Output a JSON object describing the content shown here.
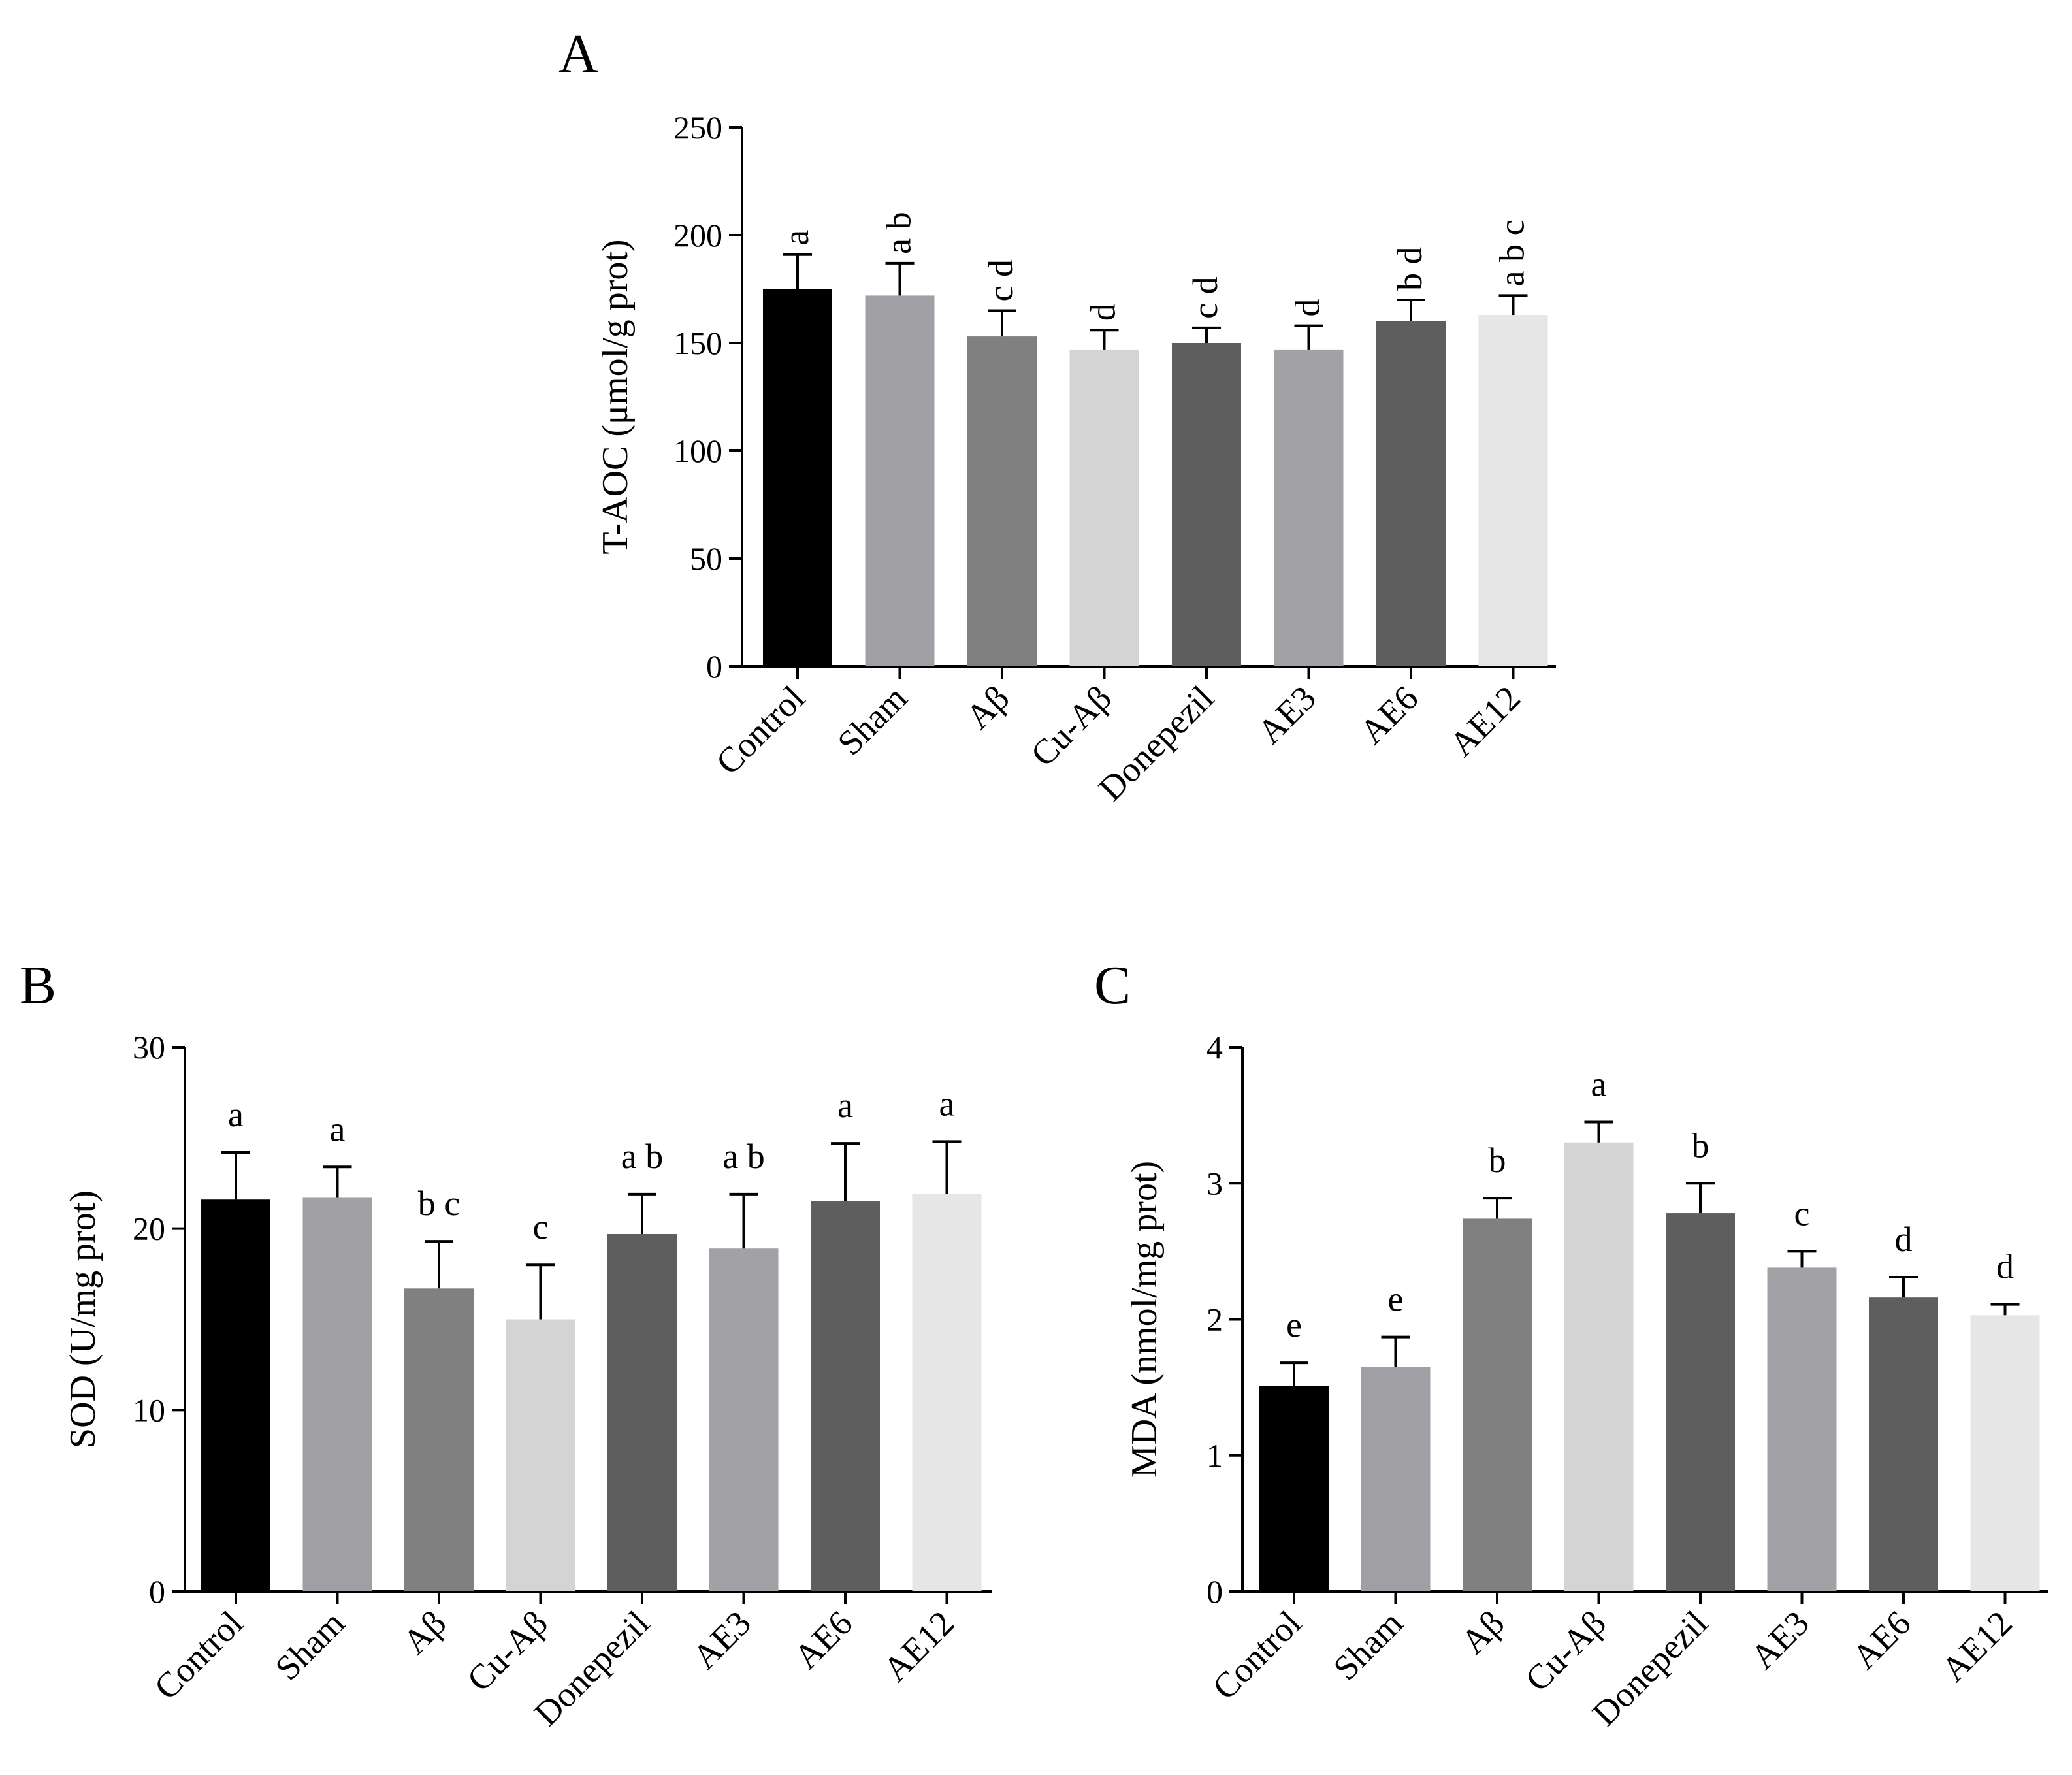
{
  "chart_data": [
    {
      "panel": "A",
      "type": "bar",
      "ylabel": "T-AOC (μmol/g prot)",
      "ylim": [
        0,
        250
      ],
      "yticks": [
        0,
        50,
        100,
        150,
        200,
        250
      ],
      "categories": [
        "Control",
        "Sham",
        "Aβ",
        "Cu-Aβ",
        "Donepezil",
        "AE3",
        "AE6",
        "AE12"
      ],
      "values": [
        175,
        172,
        153,
        147,
        150,
        147,
        160,
        163
      ],
      "errors": [
        16,
        15,
        12,
        9,
        7,
        11,
        10,
        9
      ],
      "significance": [
        "a",
        "a b",
        "c d",
        "d",
        "c d",
        "d",
        "b d",
        "a b c"
      ],
      "sig_orientation": "vertical"
    },
    {
      "panel": "B",
      "type": "bar",
      "ylabel": "SOD (U/mg prot)",
      "ylim": [
        0,
        30
      ],
      "yticks": [
        0,
        10,
        20,
        30
      ],
      "categories": [
        "Control",
        "Sham",
        "Aβ",
        "Cu-Aβ",
        "Donepezil",
        "AE3",
        "AE6",
        "AE12"
      ],
      "values": [
        21.6,
        21.7,
        16.7,
        15.0,
        19.7,
        18.9,
        21.5,
        21.9
      ],
      "errors": [
        2.6,
        1.7,
        2.6,
        3.0,
        2.2,
        3.0,
        3.2,
        2.9
      ],
      "significance": [
        "a",
        "a",
        "b c",
        "c",
        "a b",
        "a b",
        "a",
        "a"
      ],
      "sig_orientation": "horizontal"
    },
    {
      "panel": "C",
      "type": "bar",
      "ylabel": "MDA (nmol/mg prot)",
      "ylim": [
        0,
        4
      ],
      "yticks": [
        0,
        1,
        2,
        3,
        4
      ],
      "categories": [
        "Control",
        "Sham",
        "Aβ",
        "Cu-Aβ",
        "Donepezil",
        "AE3",
        "AE6",
        "AE12"
      ],
      "values": [
        1.51,
        1.65,
        2.74,
        3.3,
        2.78,
        2.38,
        2.16,
        2.03
      ],
      "errors": [
        0.17,
        0.22,
        0.15,
        0.15,
        0.22,
        0.12,
        0.15,
        0.08
      ],
      "significance": [
        "e",
        "e",
        "b",
        "a",
        "b",
        "c",
        "d",
        "d"
      ],
      "sig_orientation": "horizontal"
    }
  ],
  "colors": [
    "#000000",
    "#a0a0a4",
    "#808080",
    "#d4d4d4",
    "#5e5e5e",
    "#a2a2a6",
    "#5e5e5e",
    "#e6e6e6"
  ]
}
